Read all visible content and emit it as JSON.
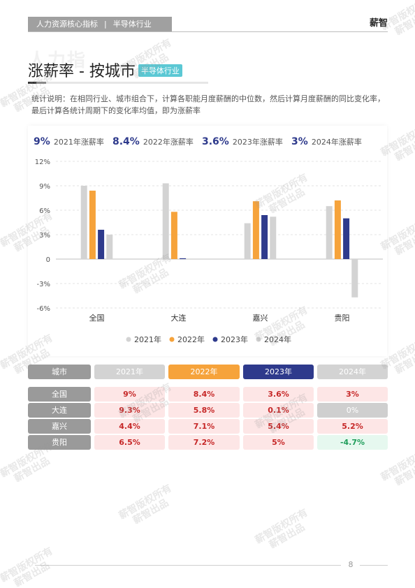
{
  "header": {
    "category": "人力资源核心指标",
    "separator": "|",
    "industry": "半导体行业",
    "brand": "薪智"
  },
  "background_word": "人力指",
  "title": {
    "text": "涨薪率 - 按城市",
    "badge": "半导体行业"
  },
  "description": "统计说明：在相同行业、城市组合下，计算各职能月度薪酬的中位数，然后计算月度薪酬的同比变化率，最后计算各统计周期下的变化率均值，即为涨薪率",
  "summary": [
    {
      "value": "9%",
      "label": "2021年涨薪率"
    },
    {
      "value": "8.4%",
      "label": "2022年涨薪率"
    },
    {
      "value": "3.6%",
      "label": "2023年涨薪率"
    },
    {
      "value": "3%",
      "label": "2024年涨薪率"
    }
  ],
  "chart_data": {
    "type": "bar",
    "categories": [
      "全国",
      "大连",
      "嘉兴",
      "贵阳"
    ],
    "series": [
      {
        "name": "2021年",
        "values": [
          9,
          9.3,
          4.4,
          6.5
        ],
        "color": "#d3d3d3"
      },
      {
        "name": "2022年",
        "values": [
          8.4,
          5.8,
          7.1,
          7.2
        ],
        "color": "#f6a33b"
      },
      {
        "name": "2023年",
        "values": [
          3.6,
          0.1,
          5.4,
          5
        ],
        "color": "#2e3a8c"
      },
      {
        "name": "2024年",
        "values": [
          3,
          0,
          5.2,
          -4.7
        ],
        "color": "#d3d3d3"
      }
    ],
    "yticks": [
      "12%",
      "9%",
      "6%",
      "3%",
      "0",
      "-3%",
      "-6%"
    ],
    "ylim": [
      -6,
      12
    ],
    "grid": true,
    "legend_position": "bottom"
  },
  "table": {
    "header": [
      {
        "label": "城市",
        "color": "#9a9a9a"
      },
      {
        "label": "2021年",
        "color": "#d3d3d3"
      },
      {
        "label": "2022年",
        "color": "#f6a33b"
      },
      {
        "label": "2023年",
        "color": "#2e3a8c"
      },
      {
        "label": "2024年",
        "color": "#d3d3d3"
      }
    ],
    "rows": [
      {
        "city": "全国",
        "values": [
          "9%",
          "8.4%",
          "3.6%",
          "3%"
        ]
      },
      {
        "city": "大连",
        "values": [
          "9.3%",
          "5.8%",
          "0.1%",
          "0%"
        ]
      },
      {
        "city": "嘉兴",
        "values": [
          "4.4%",
          "7.1%",
          "5.4%",
          "5.2%"
        ]
      },
      {
        "city": "贵阳",
        "values": [
          "6.5%",
          "7.2%",
          "5%",
          "-4.7%"
        ]
      }
    ]
  },
  "page_number": "8",
  "watermark": {
    "line1": "薪智版权所有",
    "line2": "薪智出品"
  }
}
